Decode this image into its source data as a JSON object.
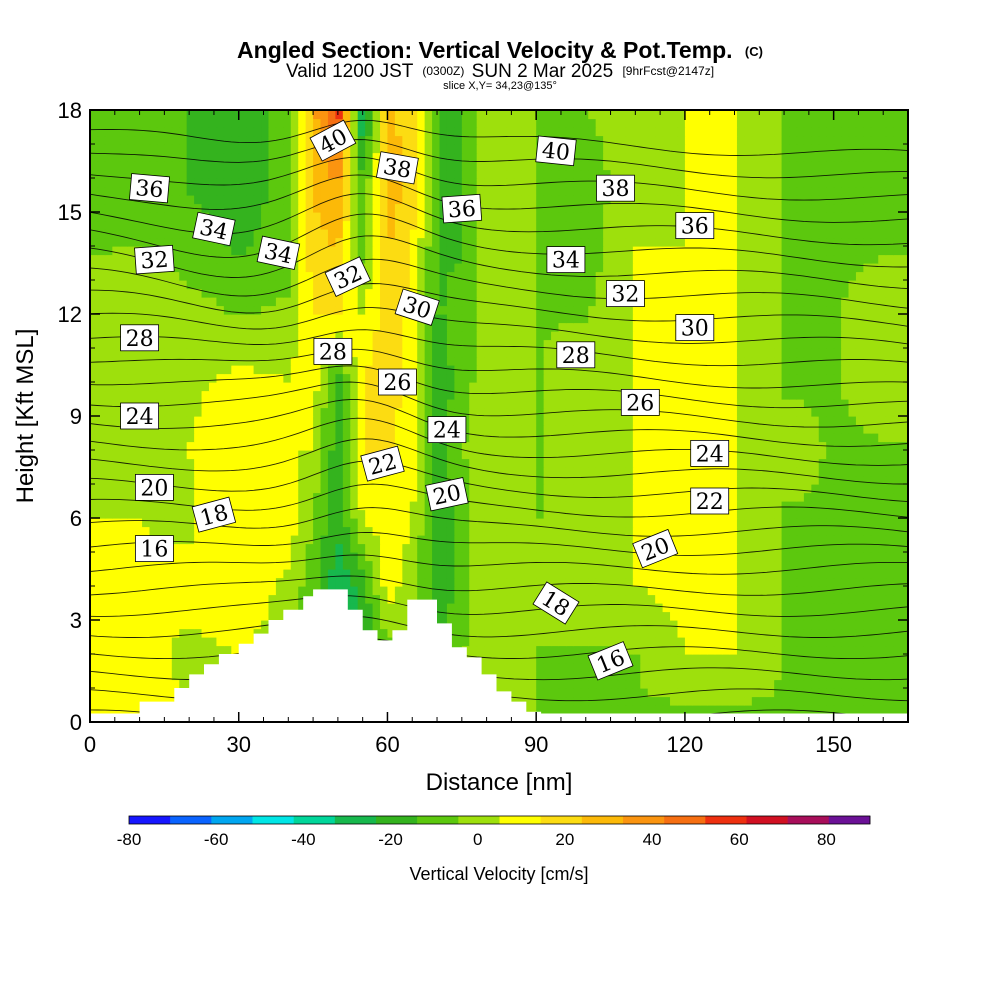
{
  "chart_data": {
    "type": "heatmap",
    "title": "Angled Section: Vertical Velocity & Pot.Temp.",
    "title_unit": "(C)",
    "subtitle": {
      "valid": "Valid 1200 JST",
      "utc": "(0300Z)",
      "date": "SUN 2 Mar 2025",
      "forecast": "[9hrFcst@2147z]"
    },
    "slice_label": "slice X,Y= 34,23@135°",
    "xlabel": "Distance [nm]",
    "ylabel": "Height [Kft MSL]",
    "xlim": [
      0,
      165
    ],
    "ylim": [
      0,
      18
    ],
    "x_ticks": [
      "0",
      "30",
      "60",
      "90",
      "120",
      "150"
    ],
    "x_tick_values": [
      0,
      30,
      60,
      90,
      120,
      150
    ],
    "y_ticks": [
      "0",
      "3",
      "6",
      "9",
      "12",
      "15",
      "18"
    ],
    "y_tick_values": [
      0,
      3,
      6,
      9,
      12,
      15,
      18
    ],
    "colorbar": {
      "label": "Vertical Velocity [cm/s]",
      "ticks": [
        "-80",
        "-60",
        "-40",
        "-20",
        "0",
        "20",
        "40",
        "60",
        "80"
      ],
      "tick_values": [
        -80,
        -60,
        -40,
        -20,
        0,
        20,
        40,
        60,
        80
      ],
      "range": [
        -80,
        90
      ],
      "bin_colors": [
        "#1616ff",
        "#0a63ff",
        "#00a6f0",
        "#00e6e6",
        "#00d69a",
        "#17b84d",
        "#34b31e",
        "#5cc80e",
        "#9ee00c",
        "#ffff00",
        "#fcdc12",
        "#fcb908",
        "#fb9410",
        "#f66f12",
        "#ee3010",
        "#d11022",
        "#a80e5a",
        "#6b1196"
      ]
    },
    "velocity_field": {
      "x": [
        0,
        10,
        20,
        30,
        40,
        45,
        50,
        55,
        60,
        65,
        70,
        75,
        80,
        85,
        90,
        100,
        110,
        120,
        130,
        140,
        150,
        165
      ],
      "y": [
        0.5,
        2,
        4,
        6,
        8,
        10,
        12,
        14,
        16,
        18
      ],
      "values_cm_s": [
        [
          8,
          8,
          5,
          3,
          0,
          -20,
          -25,
          -20,
          0,
          -15,
          -5,
          0,
          5,
          2,
          -5,
          -5,
          -5,
          -5,
          -5,
          -5,
          -5,
          -5
        ],
        [
          5,
          8,
          3,
          5,
          2,
          -20,
          -30,
          -20,
          -10,
          5,
          -20,
          -5,
          3,
          2,
          -5,
          -5,
          -5,
          5,
          5,
          -5,
          -5,
          -5
        ],
        [
          5,
          6,
          8,
          10,
          3,
          -10,
          -30,
          -20,
          10,
          0,
          -20,
          -10,
          5,
          3,
          2,
          3,
          5,
          8,
          5,
          -5,
          -5,
          -5
        ],
        [
          5,
          5,
          3,
          15,
          10,
          -5,
          -20,
          5,
          10,
          5,
          -20,
          -10,
          3,
          2,
          -5,
          2,
          5,
          8,
          5,
          -5,
          -5,
          -5
        ],
        [
          5,
          3,
          5,
          10,
          5,
          5,
          -20,
          15,
          15,
          10,
          -20,
          -5,
          2,
          2,
          -5,
          2,
          5,
          8,
          5,
          -2,
          -5,
          -5
        ],
        [
          3,
          5,
          3,
          8,
          5,
          10,
          -20,
          15,
          20,
          10,
          -20,
          -10,
          2,
          2,
          -5,
          2,
          5,
          8,
          5,
          -5,
          -5,
          0
        ],
        [
          3,
          5,
          0,
          -5,
          -2,
          15,
          15,
          5,
          20,
          10,
          -15,
          -10,
          2,
          2,
          -5,
          -5,
          5,
          5,
          5,
          -5,
          -5,
          0
        ],
        [
          -5,
          -5,
          -10,
          -15,
          -10,
          20,
          25,
          -10,
          25,
          15,
          -15,
          -15,
          2,
          2,
          -5,
          -10,
          5,
          5,
          5,
          -5,
          -5,
          -5
        ],
        [
          -5,
          -5,
          -15,
          -20,
          -10,
          25,
          35,
          -15,
          30,
          20,
          -15,
          -15,
          0,
          2,
          -5,
          -10,
          2,
          5,
          5,
          -5,
          -5,
          -5
        ],
        [
          -5,
          -5,
          -15,
          -20,
          -10,
          30,
          60,
          -35,
          25,
          20,
          -15,
          -15,
          0,
          2,
          -5,
          -5,
          2,
          5,
          5,
          -5,
          -5,
          -5
        ]
      ]
    },
    "terrain_steps": [
      {
        "x": [
          0,
          10
        ],
        "h": 0
      },
      {
        "x": [
          10,
          17
        ],
        "h": 0.6
      },
      {
        "x": [
          17,
          20
        ],
        "h": 1.0
      },
      {
        "x": [
          20,
          23
        ],
        "h": 1.4
      },
      {
        "x": [
          23,
          26
        ],
        "h": 1.7
      },
      {
        "x": [
          26,
          30
        ],
        "h": 2.0
      },
      {
        "x": [
          30,
          33
        ],
        "h": 2.3
      },
      {
        "x": [
          33,
          36
        ],
        "h": 2.6
      },
      {
        "x": [
          36,
          39
        ],
        "h": 3.0
      },
      {
        "x": [
          39,
          43
        ],
        "h": 3.3
      },
      {
        "x": [
          43,
          45
        ],
        "h": 3.7
      },
      {
        "x": [
          45,
          49
        ],
        "h": 3.9
      },
      {
        "x": [
          49,
          52
        ],
        "h": 3.9
      },
      {
        "x": [
          52,
          55
        ],
        "h": 3.3
      },
      {
        "x": [
          55,
          58
        ],
        "h": 2.7
      },
      {
        "x": [
          58,
          61
        ],
        "h": 2.4
      },
      {
        "x": [
          61,
          64
        ],
        "h": 2.7
      },
      {
        "x": [
          64,
          67
        ],
        "h": 3.6
      },
      {
        "x": [
          67,
          70
        ],
        "h": 3.6
      },
      {
        "x": [
          70,
          73
        ],
        "h": 2.9
      },
      {
        "x": [
          73,
          76
        ],
        "h": 2.2
      },
      {
        "x": [
          76,
          79
        ],
        "h": 1.9
      },
      {
        "x": [
          79,
          82
        ],
        "h": 1.4
      },
      {
        "x": [
          82,
          85
        ],
        "h": 0.9
      },
      {
        "x": [
          85,
          88
        ],
        "h": 0.6
      },
      {
        "x": [
          88,
          91
        ],
        "h": 0.3
      },
      {
        "x": [
          91,
          165
        ],
        "h": 0
      }
    ],
    "contour_labels": [
      {
        "text": "40",
        "x": 49,
        "y": 17.1,
        "rot": -28
      },
      {
        "text": "38",
        "x": 62,
        "y": 16.3,
        "rot": 10
      },
      {
        "text": "36",
        "x": 75,
        "y": 15.1,
        "rot": -4
      },
      {
        "text": "40",
        "x": 94,
        "y": 16.8,
        "rot": 6
      },
      {
        "text": "38",
        "x": 106,
        "y": 15.7,
        "rot": 0
      },
      {
        "text": "36",
        "x": 122,
        "y": 14.6,
        "rot": 0
      },
      {
        "text": "36",
        "x": 12,
        "y": 15.7,
        "rot": 5
      },
      {
        "text": "34",
        "x": 25,
        "y": 14.5,
        "rot": 12
      },
      {
        "text": "34",
        "x": 38,
        "y": 13.8,
        "rot": 12
      },
      {
        "text": "32",
        "x": 13,
        "y": 13.6,
        "rot": -4
      },
      {
        "text": "32",
        "x": 52,
        "y": 13.1,
        "rot": -25
      },
      {
        "text": "34",
        "x": 96,
        "y": 13.6,
        "rot": 0
      },
      {
        "text": "32",
        "x": 108,
        "y": 12.6,
        "rot": 0
      },
      {
        "text": "30",
        "x": 66,
        "y": 12.2,
        "rot": 18
      },
      {
        "text": "30",
        "x": 122,
        "y": 11.6,
        "rot": 0
      },
      {
        "text": "28",
        "x": 10,
        "y": 11.3,
        "rot": 0
      },
      {
        "text": "28",
        "x": 49,
        "y": 10.9,
        "rot": 0
      },
      {
        "text": "28",
        "x": 98,
        "y": 10.8,
        "rot": 0
      },
      {
        "text": "26",
        "x": 62,
        "y": 10.0,
        "rot": 0
      },
      {
        "text": "26",
        "x": 111,
        "y": 9.4,
        "rot": 0
      },
      {
        "text": "24",
        "x": 10,
        "y": 9.0,
        "rot": 0
      },
      {
        "text": "24",
        "x": 72,
        "y": 8.6,
        "rot": 0
      },
      {
        "text": "24",
        "x": 125,
        "y": 7.9,
        "rot": 0
      },
      {
        "text": "22",
        "x": 59,
        "y": 7.6,
        "rot": -15
      },
      {
        "text": "22",
        "x": 125,
        "y": 6.5,
        "rot": 0
      },
      {
        "text": "20",
        "x": 13,
        "y": 6.9,
        "rot": 0
      },
      {
        "text": "20",
        "x": 72,
        "y": 6.7,
        "rot": -12
      },
      {
        "text": "18",
        "x": 25,
        "y": 6.1,
        "rot": -15
      },
      {
        "text": "20",
        "x": 114,
        "y": 5.1,
        "rot": -22
      },
      {
        "text": "16",
        "x": 13,
        "y": 5.1,
        "rot": 0
      },
      {
        "text": "18",
        "x": 94,
        "y": 3.5,
        "rot": 32
      },
      {
        "text": "16",
        "x": 105,
        "y": 1.8,
        "rot": -22
      }
    ],
    "isentrope_levels": [
      6,
      7,
      8,
      9,
      10,
      11,
      12,
      13,
      14,
      15,
      16,
      17,
      18,
      19,
      20,
      21,
      22,
      23,
      24,
      25,
      26,
      27,
      28,
      29,
      30,
      31,
      32,
      33,
      34,
      35,
      36,
      37,
      38,
      39,
      40,
      41
    ]
  }
}
